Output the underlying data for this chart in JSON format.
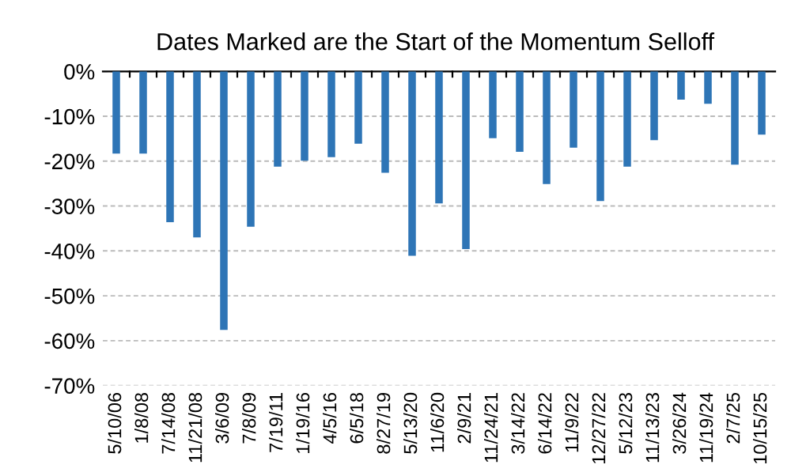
{
  "chart_data": {
    "type": "bar",
    "subtitle": "Dates Marked are the Start of the Momentum Selloff",
    "categories": [
      "5/10/06",
      "1/8/08",
      "7/14/08",
      "11/21/08",
      "3/6/09",
      "7/8/09",
      "7/19/11",
      "1/19/16",
      "4/5/16",
      "6/5/18",
      "8/27/19",
      "5/13/20",
      "11/6/20",
      "2/9/21",
      "11/24/21",
      "3/14/22",
      "6/14/22",
      "11/9/22",
      "12/27/22",
      "5/12/23",
      "11/13/23",
      "3/26/24",
      "11/19/24",
      "2/7/25",
      "10/15/25"
    ],
    "values": [
      -18.3,
      -18.3,
      -33.6,
      -37.0,
      -57.6,
      -34.6,
      -21.2,
      -19.9,
      -19.1,
      -16.1,
      -22.6,
      -41.1,
      -29.4,
      -39.6,
      -14.9,
      -17.9,
      -25.1,
      -17.0,
      -28.9,
      -21.2,
      -15.3,
      -6.3,
      -7.2,
      -20.8,
      -14.1
    ],
    "color": "#2e75b6",
    "ylim": [
      -70,
      0
    ],
    "yticks": [
      {
        "value": -70,
        "label": "-70%"
      },
      {
        "value": -60,
        "label": "-60%"
      },
      {
        "value": -50,
        "label": "-50%"
      },
      {
        "value": -40,
        "label": "-40%"
      },
      {
        "value": -30,
        "label": "-30%"
      },
      {
        "value": -20,
        "label": "-20%"
      },
      {
        "value": -10,
        "label": "-10%"
      },
      {
        "value": 0,
        "label": "0%"
      }
    ],
    "grid": "y"
  }
}
